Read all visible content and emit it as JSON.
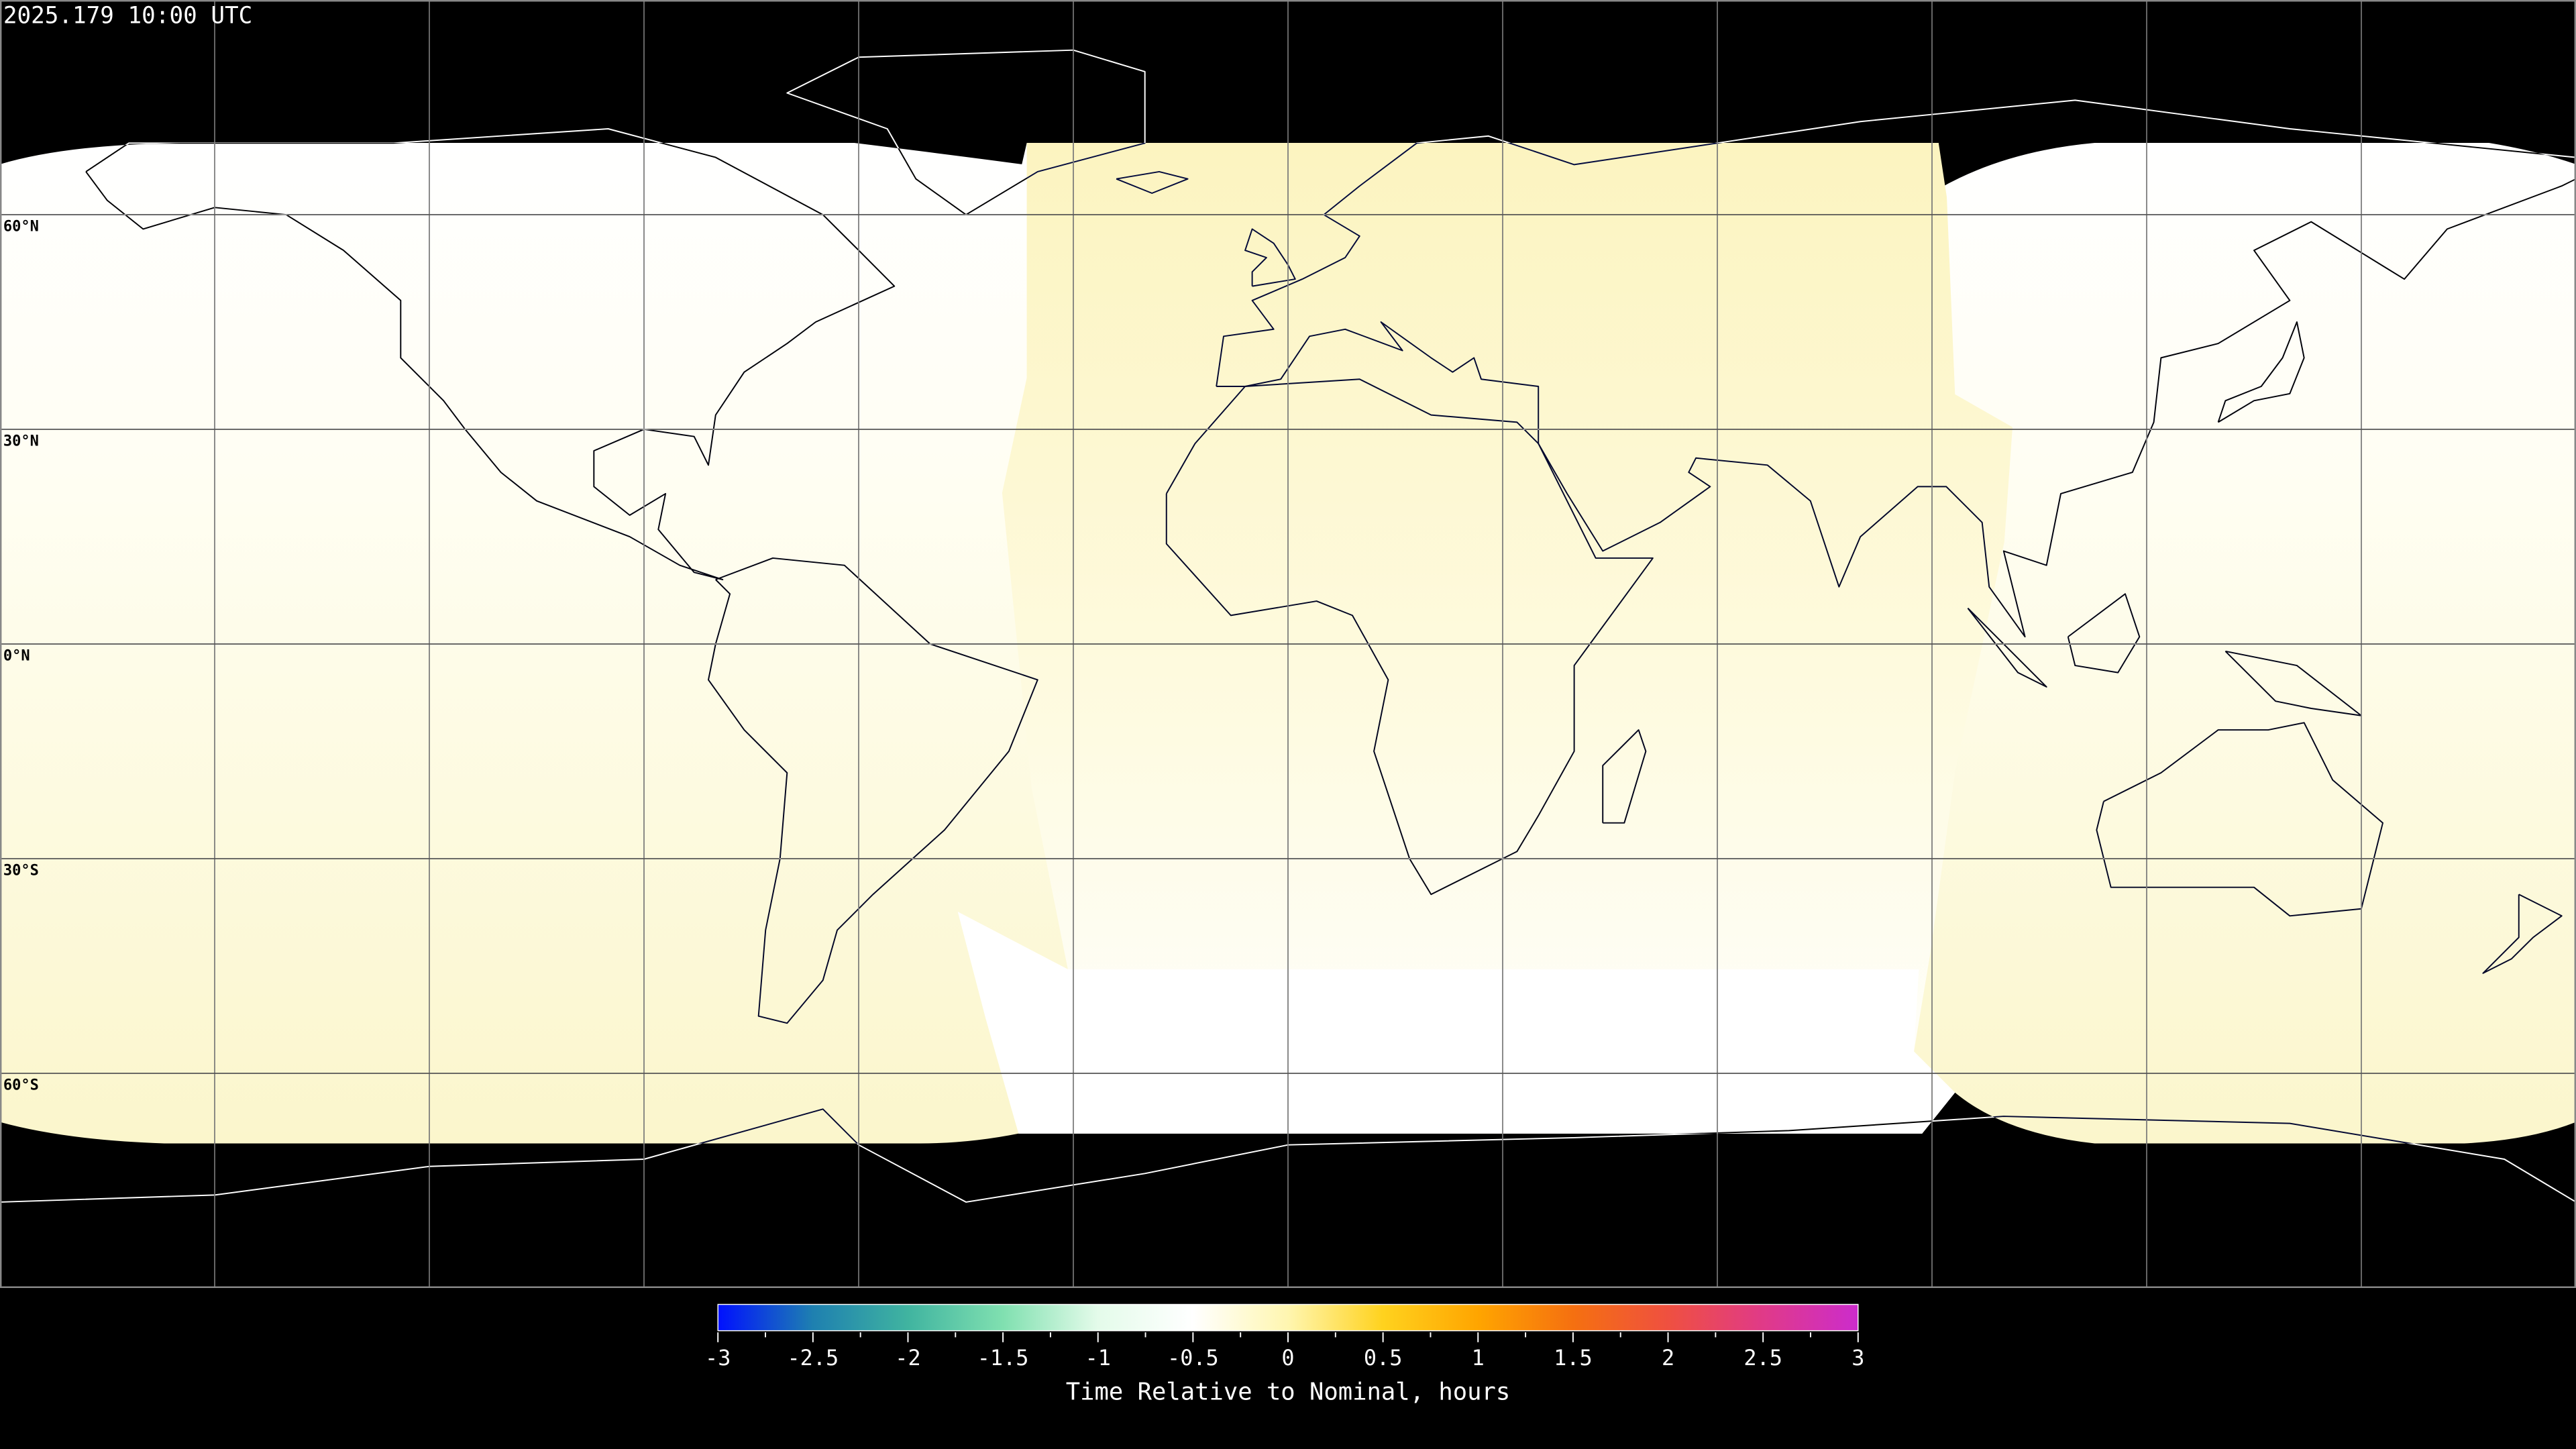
{
  "title": "2025.179 10:00 UTC",
  "map": {
    "projection": "equirectangular",
    "lat_labels": [
      "60°N",
      "30°N",
      "0°N",
      "30°S",
      "60°S"
    ],
    "lat_values": [
      60,
      30,
      0,
      -30,
      -60
    ],
    "lon_gridlines": [
      -150,
      -120,
      -90,
      -60,
      -30,
      0,
      30,
      60,
      90,
      120,
      150
    ],
    "no_data_color": "#000000",
    "coastline_color_on_data": "#000000",
    "coastline_color_off_data": "#ffffff"
  },
  "colorbar": {
    "label": "Time Relative to Nominal, hours",
    "min": -3,
    "max": 3,
    "tick_labels": [
      "-3",
      "-2.5",
      "-2",
      "-1.5",
      "-1",
      "-0.5",
      "0",
      "0.5",
      "1",
      "1.5",
      "2",
      "2.5",
      "3"
    ],
    "colors": [
      "#0010ff",
      "#1e80b0",
      "#40b4a0",
      "#80e0b0",
      "#e4fbea",
      "#ffffff",
      "#fff6b0",
      "#ffd21e",
      "#ffa500",
      "#f57010",
      "#ef5040",
      "#e03a88",
      "#cc2ccc"
    ]
  }
}
